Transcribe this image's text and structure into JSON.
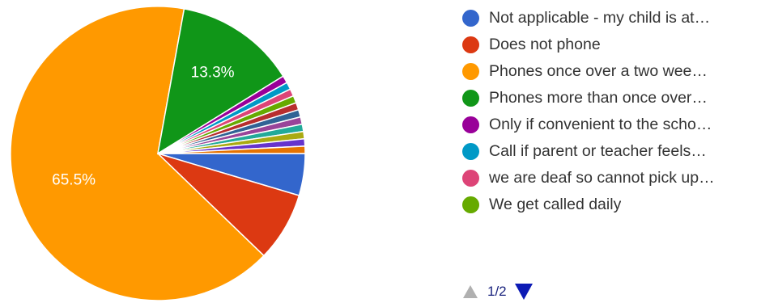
{
  "chart_data": {
    "type": "pie",
    "title": "",
    "slices": [
      {
        "label": "Not applicable - my child is at…",
        "value": 4.6,
        "color": "#3366cc"
      },
      {
        "label": "Does not phone",
        "value": 7.6,
        "color": "#dc3912"
      },
      {
        "label": "Phones once over a two wee…",
        "value": 65.5,
        "color": "#ff9900"
      },
      {
        "label": "Phones more than once over…",
        "value": 13.3,
        "color": "#109618"
      },
      {
        "label": "Only if convenient to the scho…",
        "value": 0.8,
        "color": "#990099"
      },
      {
        "label": "Call if parent or teacher feels…",
        "value": 0.8,
        "color": "#0099c6"
      },
      {
        "label": "we are deaf so cannot pick up…",
        "value": 0.8,
        "color": "#dd4477"
      },
      {
        "label": "We get called daily",
        "value": 0.8,
        "color": "#66aa00"
      },
      {
        "label": "",
        "value": 0.8,
        "color": "#b82e2e"
      },
      {
        "label": "",
        "value": 0.8,
        "color": "#316395"
      },
      {
        "label": "",
        "value": 0.8,
        "color": "#994499"
      },
      {
        "label": "",
        "value": 0.8,
        "color": "#22aa99"
      },
      {
        "label": "",
        "value": 0.8,
        "color": "#aaaa11"
      },
      {
        "label": "",
        "value": 0.8,
        "color": "#6633cc"
      },
      {
        "label": "",
        "value": 0.8,
        "color": "#e67300"
      }
    ],
    "slice_labels": [
      {
        "index": 2,
        "text": "65.5%"
      },
      {
        "index": 3,
        "text": "13.3%"
      }
    ],
    "legend_visible_count": 8,
    "legend_position": "right"
  },
  "pager": {
    "text": "1/2"
  }
}
